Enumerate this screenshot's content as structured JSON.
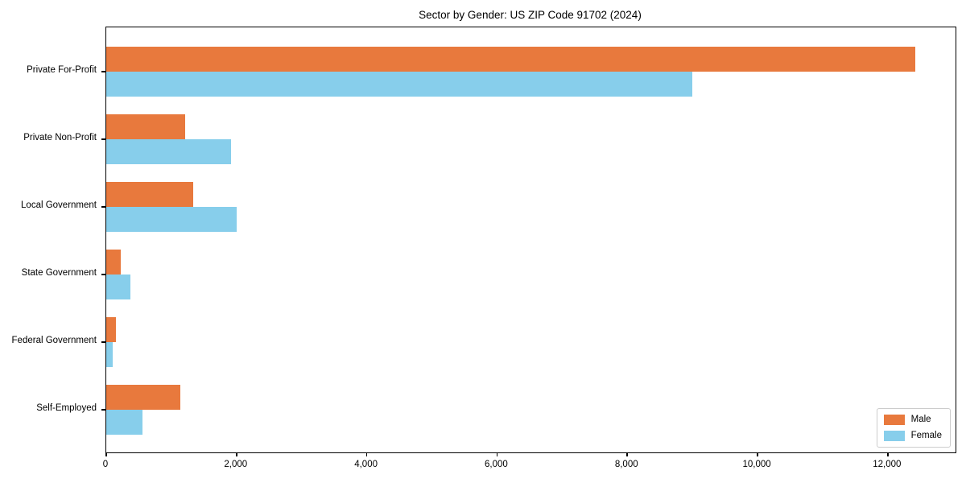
{
  "chart_data": {
    "type": "bar",
    "orientation": "horizontal",
    "title": "Sector by Gender: US ZIP Code 91702 (2024)",
    "categories": [
      "Private For-Profit",
      "Private Non-Profit",
      "Local Government",
      "State Government",
      "Federal Government",
      "Self-Employed"
    ],
    "series": [
      {
        "name": "Male",
        "color": "#e8793d",
        "values": [
          12420,
          1210,
          1340,
          225,
          150,
          1140
        ]
      },
      {
        "name": "Female",
        "color": "#87ceeb",
        "values": [
          9000,
          1910,
          2000,
          375,
          100,
          560
        ]
      }
    ],
    "xlabel": "",
    "ylabel": "",
    "xlim": [
      0,
      13040
    ],
    "xticks": [
      0,
      2000,
      4000,
      6000,
      8000,
      10000,
      12000
    ],
    "xtick_labels": [
      "0",
      "2,000",
      "4,000",
      "6,000",
      "8,000",
      "10,000",
      "12,000"
    ],
    "grid": false,
    "legend_position": "lower right",
    "frame_color": "#000000",
    "background_color": "#ffffff"
  }
}
